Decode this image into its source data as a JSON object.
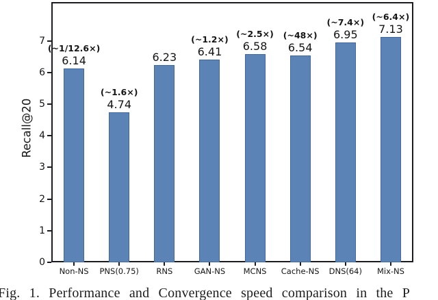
{
  "figure": {
    "caption": "Fig. 1. Performance and Convergence speed comparison in the P"
  },
  "chart_data": {
    "type": "bar",
    "title": "",
    "xlabel": "",
    "ylabel": "Recall@20",
    "categories": [
      "Non-NS",
      "PNS(0.75)",
      "RNS",
      "GAN-NS",
      "MCNS",
      "Cache-NS",
      "DNS(64)",
      "Mix-NS"
    ],
    "values": [
      6.14,
      4.74,
      6.23,
      6.41,
      6.58,
      6.54,
      6.95,
      7.13
    ],
    "value_labels": [
      "6.14",
      "4.74",
      "6.23",
      "6.41",
      "6.58",
      "6.54",
      "6.95",
      "7.13"
    ],
    "speedup_annotations": [
      "(~1/12.6×)",
      "(~1.6×)",
      "",
      "(~1.2×)",
      "(~2.5×)",
      "(~48×)",
      "(~7.4×)",
      "(~6.4×)"
    ],
    "yticks": [
      0,
      1,
      2,
      3,
      4,
      5,
      6,
      7
    ],
    "ylim": [
      0,
      8.23
    ],
    "grid": false,
    "bar_color": "#5b83b6",
    "bar_edge_color": "#3f66a0",
    "axis_color": "#1b1b22"
  }
}
